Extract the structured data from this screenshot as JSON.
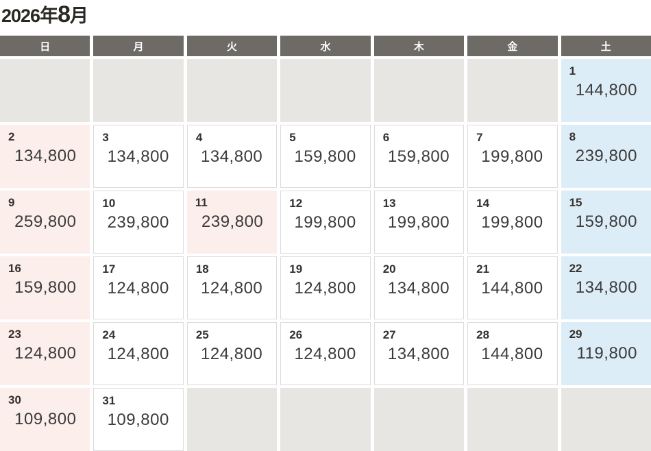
{
  "title": {
    "full": "2026年8月",
    "year": "2026年",
    "month": "8",
    "month_suffix": "月"
  },
  "weekday_header": [
    {
      "label": "日",
      "key": "sun"
    },
    {
      "label": "月",
      "key": "mon"
    },
    {
      "label": "火",
      "key": "tue"
    },
    {
      "label": "水",
      "key": "wed"
    },
    {
      "label": "木",
      "key": "thu"
    },
    {
      "label": "金",
      "key": "fri"
    },
    {
      "label": "土",
      "key": "sat"
    }
  ],
  "colors": {
    "header_bg": "#6e6a66",
    "empty_bg": "#e8e6e3",
    "sunday_bg": "#fbeeeb",
    "saturday_bg": "#ddedf7",
    "title_color": "#2b2823"
  },
  "calendar": {
    "cells": [
      {
        "type": "empty"
      },
      {
        "type": "empty"
      },
      {
        "type": "empty"
      },
      {
        "type": "empty"
      },
      {
        "type": "empty"
      },
      {
        "type": "empty"
      },
      {
        "type": "saturday",
        "day": "1",
        "price": "144,800"
      },
      {
        "type": "sunday",
        "day": "2",
        "price": "134,800"
      },
      {
        "type": "weekday",
        "day": "3",
        "price": "134,800"
      },
      {
        "type": "weekday",
        "day": "4",
        "price": "134,800"
      },
      {
        "type": "weekday",
        "day": "5",
        "price": "159,800"
      },
      {
        "type": "weekday",
        "day": "6",
        "price": "159,800"
      },
      {
        "type": "weekday",
        "day": "7",
        "price": "199,800"
      },
      {
        "type": "saturday",
        "day": "8",
        "price": "239,800"
      },
      {
        "type": "sunday",
        "day": "9",
        "price": "259,800"
      },
      {
        "type": "weekday",
        "day": "10",
        "price": "239,800"
      },
      {
        "type": "holiday",
        "day": "11",
        "price": "239,800"
      },
      {
        "type": "weekday",
        "day": "12",
        "price": "199,800"
      },
      {
        "type": "weekday",
        "day": "13",
        "price": "199,800"
      },
      {
        "type": "weekday",
        "day": "14",
        "price": "199,800"
      },
      {
        "type": "saturday",
        "day": "15",
        "price": "159,800"
      },
      {
        "type": "sunday",
        "day": "16",
        "price": "159,800"
      },
      {
        "type": "weekday",
        "day": "17",
        "price": "124,800"
      },
      {
        "type": "weekday",
        "day": "18",
        "price": "124,800"
      },
      {
        "type": "weekday",
        "day": "19",
        "price": "124,800"
      },
      {
        "type": "weekday",
        "day": "20",
        "price": "134,800"
      },
      {
        "type": "weekday",
        "day": "21",
        "price": "144,800"
      },
      {
        "type": "saturday",
        "day": "22",
        "price": "134,800"
      },
      {
        "type": "sunday",
        "day": "23",
        "price": "124,800"
      },
      {
        "type": "weekday",
        "day": "24",
        "price": "124,800"
      },
      {
        "type": "weekday",
        "day": "25",
        "price": "124,800"
      },
      {
        "type": "weekday",
        "day": "26",
        "price": "124,800"
      },
      {
        "type": "weekday",
        "day": "27",
        "price": "134,800"
      },
      {
        "type": "weekday",
        "day": "28",
        "price": "144,800"
      },
      {
        "type": "saturday",
        "day": "29",
        "price": "119,800"
      },
      {
        "type": "sunday",
        "day": "30",
        "price": "109,800"
      },
      {
        "type": "weekday",
        "day": "31",
        "price": "109,800"
      },
      {
        "type": "empty"
      },
      {
        "type": "empty"
      },
      {
        "type": "empty"
      },
      {
        "type": "empty"
      },
      {
        "type": "empty"
      }
    ]
  }
}
